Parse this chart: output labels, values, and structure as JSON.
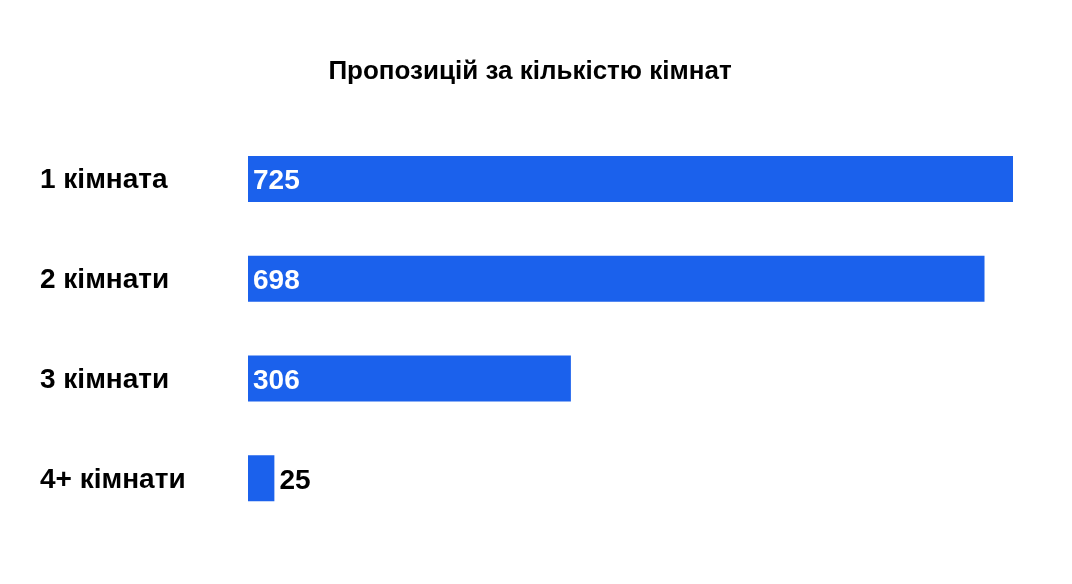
{
  "chart_data": {
    "type": "bar",
    "orientation": "horizontal",
    "title": "Пропозицій за кількістю кімнат",
    "categories": [
      "1 кімната",
      "2 кімнати",
      "3 кімнати",
      "4+ кімнати"
    ],
    "values": [
      725,
      698,
      306,
      25
    ],
    "color": "#1b61ec",
    "data_labels": true
  }
}
